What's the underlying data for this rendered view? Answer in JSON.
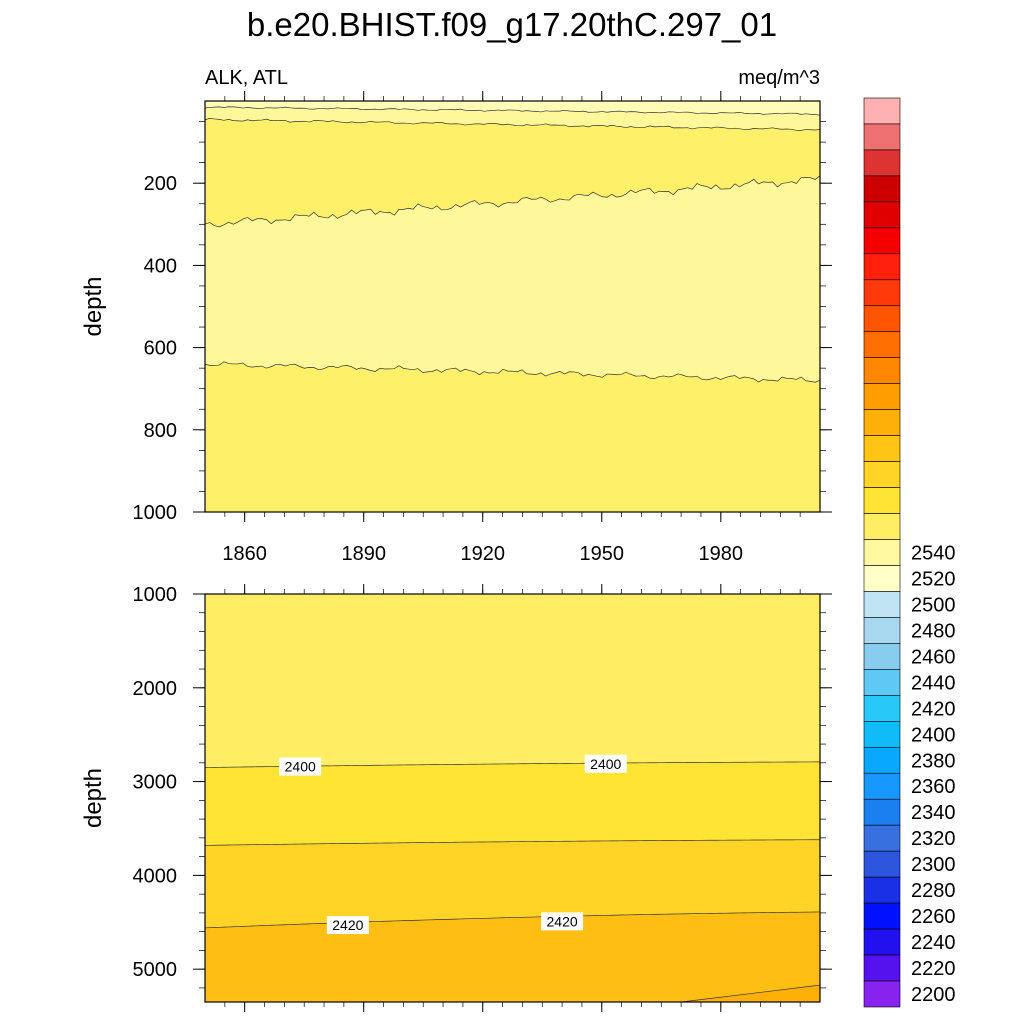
{
  "chart_data": {
    "type": "heatmap",
    "title": "b.e20.BHIST.f09_g17.20thC.297_01",
    "left_label": "ALK, ATL",
    "right_label": "meq/m^3",
    "ylabel": "depth",
    "x_ticks": [
      "1860",
      "1890",
      "1920",
      "1950",
      "1980"
    ],
    "x_tick_values": [
      1860,
      1890,
      1920,
      1950,
      1980
    ],
    "xlim": [
      1850,
      2005
    ],
    "upper_panel": {
      "ylim": [
        0,
        1000
      ],
      "y_reversed": true,
      "y_ticks": [
        "200",
        "400",
        "600",
        "800",
        "1000"
      ],
      "y_tick_values": [
        200,
        400,
        600,
        800,
        1000
      ],
      "contours": [
        {
          "depth_start": 15,
          "depth_end": 35
        },
        {
          "depth_start": 45,
          "depth_end": 70
        },
        {
          "depth_start": 300,
          "depth_end": 190
        },
        {
          "depth_start": 640,
          "depth_end": 680
        }
      ],
      "bands": [
        {
          "range": "0-35",
          "level": "2380-2390",
          "color": "#fffcb8"
        },
        {
          "range": "35-300",
          "level": "2390-2400",
          "color": "#fff06a"
        },
        {
          "range": "300-650",
          "level": "2380-2390",
          "color": "#fff89a"
        },
        {
          "range": "650-1000",
          "level": "2390-2400",
          "color": "#fff06a"
        }
      ]
    },
    "lower_panel": {
      "ylim": [
        1000,
        5350
      ],
      "y_reversed": true,
      "y_ticks": [
        "1000",
        "2000",
        "3000",
        "4000",
        "5000"
      ],
      "y_tick_values": [
        1000,
        2000,
        3000,
        4000,
        5000
      ],
      "contour_labels": [
        {
          "text": "2400",
          "year": 1874,
          "depth": 2840
        },
        {
          "text": "2400",
          "year": 1951,
          "depth": 2810
        },
        {
          "text": "2420",
          "year": 1886,
          "depth": 4530
        },
        {
          "text": "2420",
          "year": 1940,
          "depth": 4490
        }
      ],
      "bands": [
        {
          "range": "1000-2840",
          "level": "2390-2400",
          "color": "#ffee64"
        },
        {
          "range": "2840-3670",
          "level": "2400-2410",
          "color": "#ffe433"
        },
        {
          "range": "3670-4550",
          "level": "2410-2420",
          "color": "#ffd426"
        },
        {
          "range": "4550-5350",
          "level": "2420-2430",
          "color": "#ffbe14"
        }
      ]
    },
    "colorbar": {
      "labels": [
        "2200",
        "2220",
        "2240",
        "2260",
        "2280",
        "2300",
        "2320",
        "2340",
        "2360",
        "2380",
        "2400",
        "2420",
        "2440",
        "2460",
        "2480",
        "2500",
        "2520",
        "2540"
      ],
      "colors": [
        "#8822ee",
        "#5511ee",
        "#2211ee",
        "#0011ff",
        "#1a30e6",
        "#2e55dd",
        "#3870e0",
        "#1a80f0",
        "#1898ff",
        "#08a8ff",
        "#10bcf8",
        "#28c8f8",
        "#60c8f4",
        "#88ccee",
        "#a8d8f0",
        "#c0e4f4",
        "#ffffc8",
        "#fff8a0",
        "#ffee64",
        "#ffe433",
        "#ffd426",
        "#ffc414",
        "#ffb008",
        "#ff9c00",
        "#ff8800",
        "#ff6e00",
        "#ff5400",
        "#ff3a0a",
        "#ff1f0a",
        "#f50000",
        "#e00000",
        "#cc0000",
        "#dd3333",
        "#ee7070",
        "#ffb0b0"
      ]
    }
  }
}
